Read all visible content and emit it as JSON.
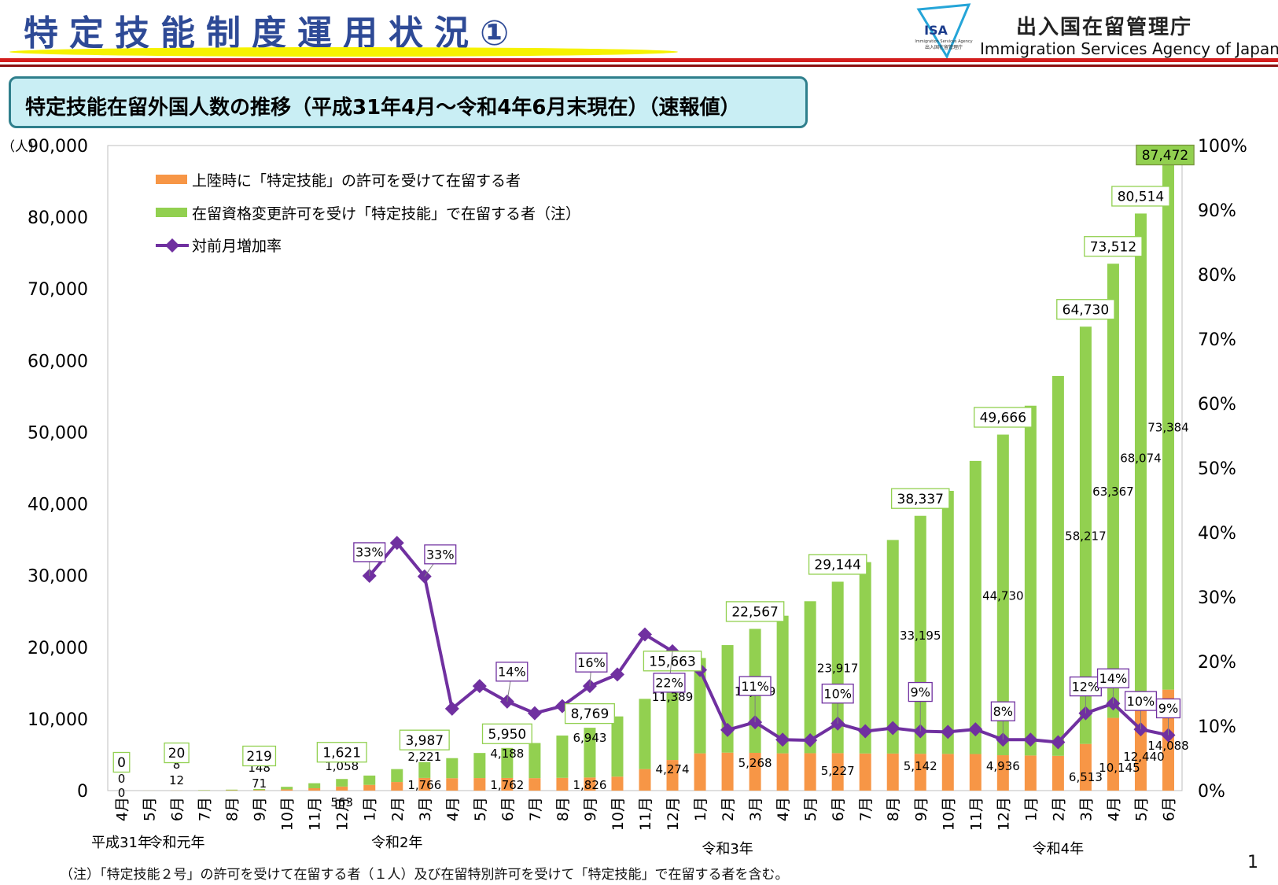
{
  "header": {
    "title": "特定技能制度運用状況①",
    "agency_jp": "出入国在留管理庁",
    "agency_en": "Immigration Services Agency of Japan",
    "logo_text": "ISA",
    "logo_sub_en": "Immigration Services Agency",
    "logo_sub_jp": "出入国在留管理庁"
  },
  "subtitle": "特定技能在留外国人数の推移（平成31年4月～令和4年6月末現在）（速報値）",
  "footnote": "（注）「特定技能２号」の許可を受けて在留する者（１人）及び在留特別許可を受けて「特定技能」で在留する者を含む。",
  "page_number": "1",
  "chart_data": {
    "type": "bar",
    "stacked": true,
    "y_unit_label": "（人）",
    "ylim": [
      0,
      90000
    ],
    "yticks": [
      "0",
      "10,000",
      "20,000",
      "30,000",
      "40,000",
      "50,000",
      "60,000",
      "70,000",
      "80,000",
      "90,000"
    ],
    "y2lim": [
      0,
      100
    ],
    "y2ticks": [
      "0%",
      "10%",
      "20%",
      "30%",
      "40%",
      "50%",
      "60%",
      "70%",
      "80%",
      "90%",
      "100%"
    ],
    "grid": false,
    "legend_position": "top-left",
    "categories": [
      "4月",
      "5月",
      "6月",
      "7月",
      "8月",
      "9月",
      "10月",
      "11月",
      "12月",
      "1月",
      "2月",
      "3月",
      "4月",
      "5月",
      "6月",
      "7月",
      "8月",
      "9月",
      "10月",
      "11月",
      "12月",
      "1月",
      "2月",
      "3月",
      "4月",
      "5月",
      "6月",
      "7月",
      "8月",
      "9月",
      "10月",
      "11月",
      "12月",
      "1月",
      "2月",
      "3月",
      "4月",
      "5月",
      "6月"
    ],
    "year_labels": [
      {
        "label": "平成31年",
        "at_index": 0
      },
      {
        "label": "令和元年",
        "at_index": 2
      },
      {
        "label": "令和2年",
        "at_index": 10
      },
      {
        "label": "令和3年",
        "at_index": 22
      },
      {
        "label": "令和4年",
        "at_index": 34
      }
    ],
    "series": [
      {
        "name": "上陸時に「特定技能」の許可を受けて在留する者",
        "color": "#f79646",
        "axis": "left",
        "values": [
          0,
          4,
          12,
          25,
          45,
          71,
          170,
          330,
          563,
          800,
          1200,
          1766,
          1730,
          1750,
          1762,
          1740,
          1780,
          1826,
          1950,
          3000,
          4274,
          5200,
          5300,
          5268,
          5200,
          5220,
          5227,
          5180,
          5170,
          5142,
          5120,
          5100,
          4936,
          4900,
          4850,
          6513,
          10145,
          12440,
          14088
        ]
      },
      {
        "name": "在留資格変更許可を受け「特定技能」で在留する者（注）",
        "color": "#92d050",
        "axis": "left",
        "values": [
          0,
          4,
          8,
          50,
          90,
          148,
          360,
          700,
          1058,
          1300,
          1800,
          2221,
          2800,
          3500,
          4188,
          4900,
          5900,
          6943,
          8400,
          9800,
          11389,
          13300,
          15000,
          17299,
          19200,
          21200,
          23917,
          26700,
          29800,
          33195,
          36700,
          40900,
          44730,
          48800,
          53000,
          58217,
          63367,
          68074,
          73384
        ]
      },
      {
        "name": "対前月増加率",
        "color": "#7030a0",
        "axis": "right",
        "type": "line",
        "marker": "diamond",
        "values": [
          null,
          null,
          null,
          null,
          null,
          null,
          null,
          null,
          null,
          33.3,
          38.4,
          33.2,
          12.7,
          16.2,
          13.8,
          12.0,
          13.1,
          16.2,
          18.0,
          24.2,
          21.6,
          18.7,
          9.4,
          10.6,
          7.9,
          7.8,
          10.4,
          9.2,
          9.7,
          9.2,
          9.1,
          9.5,
          7.9,
          7.9,
          7.5,
          12.0,
          13.5,
          9.5,
          8.6
        ]
      }
    ],
    "totals": [
      0,
      8,
      20,
      75,
      135,
      219,
      530,
      1030,
      1621,
      2100,
      3000,
      3987,
      4530,
      5250,
      5950,
      6640,
      7680,
      8769,
      10350,
      12800,
      15663,
      18500,
      20300,
      22567,
      24400,
      26420,
      29144,
      31880,
      34970,
      38337,
      41820,
      46000,
      49666,
      53700,
      57850,
      64730,
      73512,
      80514,
      87472
    ],
    "total_labels": [
      {
        "index": 0,
        "label": "0"
      },
      {
        "index": 2,
        "label": "20"
      },
      {
        "index": 5,
        "label": "219"
      },
      {
        "index": 8,
        "label": "1,621"
      },
      {
        "index": 11,
        "label": "3,987"
      },
      {
        "index": 14,
        "label": "5,950"
      },
      {
        "index": 17,
        "label": "8,769"
      },
      {
        "index": 20,
        "label": "15,663"
      },
      {
        "index": 23,
        "label": "22,567"
      },
      {
        "index": 26,
        "label": "29,144"
      },
      {
        "index": 29,
        "label": "38,337"
      },
      {
        "index": 32,
        "label": "49,666"
      },
      {
        "index": 35,
        "label": "64,730"
      },
      {
        "index": 36,
        "label": "73,512"
      },
      {
        "index": 37,
        "label": "80,514"
      },
      {
        "index": 38,
        "label": "87,472"
      }
    ],
    "orange_labels": [
      {
        "index": 0,
        "label": "0"
      },
      {
        "index": 2,
        "label": "12"
      },
      {
        "index": 5,
        "label": "71"
      },
      {
        "index": 8,
        "label": "563"
      },
      {
        "index": 11,
        "label": "1,766"
      },
      {
        "index": 14,
        "label": "1,762"
      },
      {
        "index": 17,
        "label": "1,826"
      },
      {
        "index": 20,
        "label": "4,274"
      },
      {
        "index": 23,
        "label": "5,268"
      },
      {
        "index": 26,
        "label": "5,227"
      },
      {
        "index": 29,
        "label": "5,142"
      },
      {
        "index": 32,
        "label": "4,936"
      },
      {
        "index": 35,
        "label": "6,513"
      },
      {
        "index": 36,
        "label": "10,145"
      },
      {
        "index": 37,
        "label": "12,440"
      },
      {
        "index": 38,
        "label": "14,088"
      }
    ],
    "green_labels": [
      {
        "index": 0,
        "label": "0"
      },
      {
        "index": 2,
        "label": "8"
      },
      {
        "index": 5,
        "label": "148"
      },
      {
        "index": 8,
        "label": "1,058"
      },
      {
        "index": 11,
        "label": "2,221"
      },
      {
        "index": 14,
        "label": "4,188"
      },
      {
        "index": 17,
        "label": "6,943"
      },
      {
        "index": 20,
        "label": "11,389"
      },
      {
        "index": 23,
        "label": "17,299"
      },
      {
        "index": 26,
        "label": "23,917"
      },
      {
        "index": 29,
        "label": "33,195"
      },
      {
        "index": 32,
        "label": "44,730"
      },
      {
        "index": 35,
        "label": "58,217"
      },
      {
        "index": 36,
        "label": "63,367"
      },
      {
        "index": 37,
        "label": "68,074"
      },
      {
        "index": 38,
        "label": "73,384"
      }
    ],
    "rate_labels": [
      {
        "index": 9,
        "label": "33%"
      },
      {
        "index": 11,
        "label": "33%"
      },
      {
        "index": 14,
        "label": "14%"
      },
      {
        "index": 17,
        "label": "16%"
      },
      {
        "index": 20,
        "label": "22%"
      },
      {
        "index": 23,
        "label": "11%"
      },
      {
        "index": 26,
        "label": "10%"
      },
      {
        "index": 29,
        "label": "9%"
      },
      {
        "index": 32,
        "label": "8%"
      },
      {
        "index": 35,
        "label": "12%"
      },
      {
        "index": 36,
        "label": "14%"
      },
      {
        "index": 37,
        "label": "10%"
      },
      {
        "index": 38,
        "label": "9%"
      }
    ]
  }
}
